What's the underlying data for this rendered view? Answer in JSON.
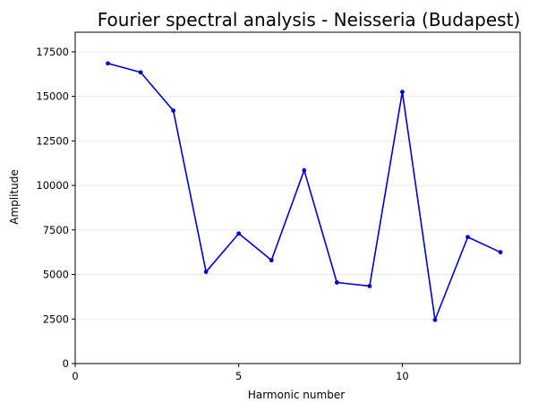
{
  "chart_data": {
    "type": "line",
    "title": "Fourier spectral analysis - Neisseria (Budapest)",
    "xlabel": "Harmonic number",
    "ylabel": "Amplitude",
    "xlim": [
      0,
      13.6
    ],
    "ylim": [
      0,
      18600
    ],
    "xticks": [
      0,
      5,
      10
    ],
    "xtick_labels": [
      "0",
      "5",
      "10"
    ],
    "yticks": [
      0,
      2500,
      5000,
      7500,
      10000,
      12500,
      15000,
      17500
    ],
    "ytick_labels": [
      "0",
      "2500",
      "5000",
      "7500",
      "10000",
      "12500",
      "15000",
      "17500"
    ],
    "grid": "horizontal",
    "line_color": "#0000cc",
    "series": [
      {
        "x": [
          1,
          2,
          3,
          4,
          5,
          6,
          7,
          8,
          9,
          10,
          11,
          12,
          13
        ],
        "y": [
          16850,
          16350,
          14200,
          5150,
          7300,
          5800,
          10850,
          4550,
          4350,
          15250,
          2450,
          7100,
          6250
        ]
      }
    ]
  }
}
